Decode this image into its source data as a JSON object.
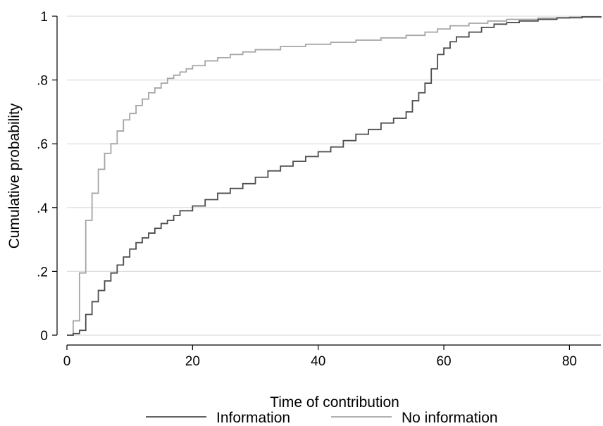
{
  "chart_data": {
    "type": "line",
    "step": true,
    "xlabel": "Time of contribution",
    "ylabel": "Cumulative probability",
    "xlim": [
      0,
      85
    ],
    "ylim": [
      0,
      1
    ],
    "x_ticks": [
      0,
      20,
      40,
      60,
      80
    ],
    "x_tick_labels": [
      "0",
      "20",
      "40",
      "60",
      "80"
    ],
    "y_ticks": [
      0,
      0.2,
      0.4,
      0.6,
      0.8,
      1
    ],
    "y_tick_labels": [
      "0",
      ".2",
      ".4",
      ".6",
      ".8",
      "1"
    ],
    "grid": true,
    "legend_position": "bottom",
    "series": [
      {
        "name": "Information",
        "color": "#4d4d4d",
        "points": [
          [
            0,
            0
          ],
          [
            1,
            0.005
          ],
          [
            2,
            0.015
          ],
          [
            3,
            0.065
          ],
          [
            4,
            0.105
          ],
          [
            5,
            0.14
          ],
          [
            6,
            0.17
          ],
          [
            7,
            0.195
          ],
          [
            8,
            0.22
          ],
          [
            9,
            0.245
          ],
          [
            10,
            0.27
          ],
          [
            11,
            0.29
          ],
          [
            12,
            0.305
          ],
          [
            13,
            0.32
          ],
          [
            14,
            0.335
          ],
          [
            15,
            0.35
          ],
          [
            16,
            0.36
          ],
          [
            17,
            0.375
          ],
          [
            18,
            0.39
          ],
          [
            20,
            0.405
          ],
          [
            22,
            0.425
          ],
          [
            24,
            0.445
          ],
          [
            26,
            0.46
          ],
          [
            28,
            0.475
          ],
          [
            30,
            0.495
          ],
          [
            32,
            0.515
          ],
          [
            34,
            0.53
          ],
          [
            36,
            0.545
          ],
          [
            38,
            0.56
          ],
          [
            40,
            0.575
          ],
          [
            42,
            0.59
          ],
          [
            44,
            0.61
          ],
          [
            46,
            0.63
          ],
          [
            48,
            0.645
          ],
          [
            50,
            0.665
          ],
          [
            52,
            0.68
          ],
          [
            54,
            0.7
          ],
          [
            55,
            0.735
          ],
          [
            56,
            0.76
          ],
          [
            57,
            0.79
          ],
          [
            58,
            0.835
          ],
          [
            59,
            0.88
          ],
          [
            60,
            0.9
          ],
          [
            61,
            0.92
          ],
          [
            62,
            0.935
          ],
          [
            64,
            0.95
          ],
          [
            66,
            0.965
          ],
          [
            68,
            0.975
          ],
          [
            70,
            0.98
          ],
          [
            72,
            0.985
          ],
          [
            75,
            0.99
          ],
          [
            78,
            0.995
          ],
          [
            82,
            0.998
          ],
          [
            85,
            1
          ]
        ]
      },
      {
        "name": "No information",
        "color": "#a6a6a6",
        "points": [
          [
            0,
            0
          ],
          [
            1,
            0.045
          ],
          [
            2,
            0.195
          ],
          [
            3,
            0.36
          ],
          [
            4,
            0.445
          ],
          [
            5,
            0.52
          ],
          [
            6,
            0.57
          ],
          [
            7,
            0.6
          ],
          [
            8,
            0.64
          ],
          [
            9,
            0.675
          ],
          [
            10,
            0.695
          ],
          [
            11,
            0.72
          ],
          [
            12,
            0.74
          ],
          [
            13,
            0.76
          ],
          [
            14,
            0.775
          ],
          [
            15,
            0.79
          ],
          [
            16,
            0.805
          ],
          [
            17,
            0.815
          ],
          [
            18,
            0.825
          ],
          [
            19,
            0.835
          ],
          [
            20,
            0.845
          ],
          [
            22,
            0.86
          ],
          [
            24,
            0.87
          ],
          [
            26,
            0.88
          ],
          [
            28,
            0.888
          ],
          [
            30,
            0.895
          ],
          [
            34,
            0.905
          ],
          [
            38,
            0.912
          ],
          [
            42,
            0.918
          ],
          [
            46,
            0.925
          ],
          [
            50,
            0.932
          ],
          [
            54,
            0.94
          ],
          [
            57,
            0.95
          ],
          [
            59,
            0.96
          ],
          [
            61,
            0.97
          ],
          [
            64,
            0.978
          ],
          [
            67,
            0.985
          ],
          [
            70,
            0.99
          ],
          [
            75,
            0.994
          ],
          [
            80,
            0.997
          ],
          [
            85,
            1
          ]
        ]
      }
    ]
  }
}
